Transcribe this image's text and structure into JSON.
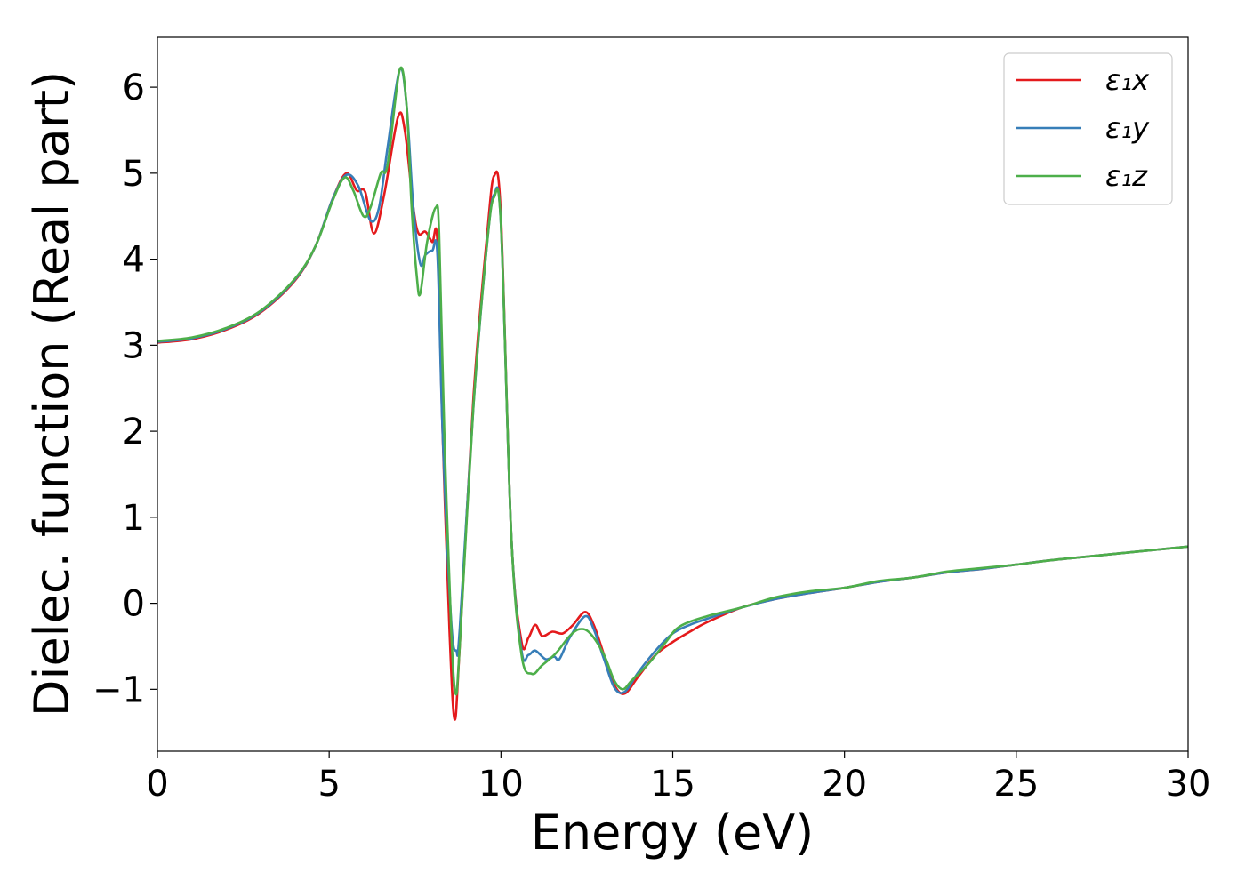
{
  "chart_data": {
    "type": "line",
    "title": "",
    "xlabel": "Energy (eV)",
    "ylabel": "Dielec. function (Real part)",
    "xlim": [
      0,
      30
    ],
    "ylim": [
      -1.72,
      6.58
    ],
    "xticks": [
      0,
      5,
      10,
      15,
      20,
      25,
      30
    ],
    "xtick_labels": [
      "0",
      "5",
      "10",
      "15",
      "20",
      "25",
      "30"
    ],
    "yticks": [
      -1,
      0,
      1,
      2,
      3,
      4,
      5,
      6
    ],
    "ytick_labels": [
      "−1",
      "0",
      "1",
      "2",
      "3",
      "4",
      "5",
      "6"
    ],
    "grid": false,
    "legend": "top-right",
    "series": [
      {
        "name": "ε₁x",
        "color": "#e41a1c",
        "points": [
          [
            0,
            3.03
          ],
          [
            1,
            3.07
          ],
          [
            2,
            3.18
          ],
          [
            3,
            3.38
          ],
          [
            4,
            3.75
          ],
          [
            4.6,
            4.15
          ],
          [
            5.1,
            4.7
          ],
          [
            5.5,
            5.0
          ],
          [
            5.8,
            4.8
          ],
          [
            6.05,
            4.78
          ],
          [
            6.3,
            4.3
          ],
          [
            6.6,
            4.75
          ],
          [
            7.0,
            5.65
          ],
          [
            7.2,
            5.5
          ],
          [
            7.45,
            4.6
          ],
          [
            7.6,
            4.3
          ],
          [
            7.8,
            4.32
          ],
          [
            8.0,
            4.2
          ],
          [
            8.15,
            4.2
          ],
          [
            8.3,
            2.0
          ],
          [
            8.5,
            -0.3
          ],
          [
            8.65,
            -1.35
          ],
          [
            8.8,
            -0.5
          ],
          [
            9.2,
            2.4
          ],
          [
            9.6,
            4.3
          ],
          [
            9.8,
            4.97
          ],
          [
            10.0,
            4.5
          ],
          [
            10.3,
            0.8
          ],
          [
            10.6,
            -0.45
          ],
          [
            10.8,
            -0.4
          ],
          [
            11.0,
            -0.25
          ],
          [
            11.2,
            -0.38
          ],
          [
            11.5,
            -0.33
          ],
          [
            11.8,
            -0.35
          ],
          [
            12.1,
            -0.25
          ],
          [
            12.45,
            -0.1
          ],
          [
            12.7,
            -0.25
          ],
          [
            13.0,
            -0.6
          ],
          [
            13.3,
            -0.95
          ],
          [
            13.6,
            -1.05
          ],
          [
            14.0,
            -0.85
          ],
          [
            14.5,
            -0.6
          ],
          [
            15.0,
            -0.45
          ],
          [
            15.5,
            -0.33
          ],
          [
            16,
            -0.22
          ],
          [
            17,
            -0.05
          ],
          [
            18,
            0.05
          ],
          [
            19,
            0.12
          ],
          [
            20,
            0.18
          ],
          [
            21,
            0.25
          ],
          [
            22,
            0.3
          ],
          [
            23,
            0.36
          ],
          [
            24,
            0.4
          ],
          [
            25,
            0.45
          ],
          [
            26,
            0.5
          ],
          [
            27,
            0.54
          ],
          [
            28,
            0.58
          ],
          [
            29,
            0.62
          ],
          [
            30,
            0.66
          ]
        ]
      },
      {
        "name": "ε₁y",
        "color": "#377eb8",
        "points": [
          [
            0,
            3.04
          ],
          [
            1,
            3.08
          ],
          [
            2,
            3.19
          ],
          [
            3,
            3.39
          ],
          [
            4,
            3.76
          ],
          [
            4.6,
            4.15
          ],
          [
            5.1,
            4.7
          ],
          [
            5.5,
            4.98
          ],
          [
            5.85,
            4.85
          ],
          [
            6.2,
            4.45
          ],
          [
            6.45,
            4.6
          ],
          [
            6.7,
            5.3
          ],
          [
            7.05,
            6.2
          ],
          [
            7.25,
            5.8
          ],
          [
            7.45,
            4.6
          ],
          [
            7.65,
            3.95
          ],
          [
            7.8,
            4.05
          ],
          [
            8.0,
            4.1
          ],
          [
            8.15,
            4.05
          ],
          [
            8.3,
            2.0
          ],
          [
            8.55,
            -0.2
          ],
          [
            8.7,
            -0.55
          ],
          [
            8.8,
            -0.3
          ],
          [
            9.2,
            2.3
          ],
          [
            9.6,
            4.2
          ],
          [
            9.8,
            4.75
          ],
          [
            10.0,
            4.4
          ],
          [
            10.3,
            0.8
          ],
          [
            10.6,
            -0.55
          ],
          [
            10.8,
            -0.6
          ],
          [
            11.0,
            -0.55
          ],
          [
            11.3,
            -0.65
          ],
          [
            11.55,
            -0.62
          ],
          [
            11.7,
            -0.65
          ],
          [
            12.0,
            -0.4
          ],
          [
            12.45,
            -0.15
          ],
          [
            12.7,
            -0.3
          ],
          [
            13.0,
            -0.65
          ],
          [
            13.3,
            -0.98
          ],
          [
            13.6,
            -1.03
          ],
          [
            14.0,
            -0.8
          ],
          [
            14.5,
            -0.55
          ],
          [
            15.0,
            -0.35
          ],
          [
            15.5,
            -0.25
          ],
          [
            16,
            -0.18
          ],
          [
            17,
            -0.05
          ],
          [
            18,
            0.05
          ],
          [
            19,
            0.12
          ],
          [
            20,
            0.18
          ],
          [
            21,
            0.25
          ],
          [
            22,
            0.3
          ],
          [
            23,
            0.36
          ],
          [
            24,
            0.4
          ],
          [
            25,
            0.45
          ],
          [
            26,
            0.5
          ],
          [
            27,
            0.54
          ],
          [
            28,
            0.58
          ],
          [
            29,
            0.62
          ],
          [
            30,
            0.66
          ]
        ]
      },
      {
        "name": "ε₁z",
        "color": "#4daf4a",
        "points": [
          [
            0,
            3.05
          ],
          [
            1,
            3.09
          ],
          [
            2,
            3.2
          ],
          [
            3,
            3.4
          ],
          [
            4,
            3.77
          ],
          [
            4.6,
            4.15
          ],
          [
            5.1,
            4.68
          ],
          [
            5.45,
            4.95
          ],
          [
            5.7,
            4.8
          ],
          [
            6.0,
            4.5
          ],
          [
            6.2,
            4.6
          ],
          [
            6.5,
            5.0
          ],
          [
            6.7,
            5.1
          ],
          [
            7.05,
            6.2
          ],
          [
            7.25,
            5.8
          ],
          [
            7.4,
            4.6
          ],
          [
            7.55,
            3.8
          ],
          [
            7.65,
            3.6
          ],
          [
            7.85,
            4.2
          ],
          [
            8.1,
            4.6
          ],
          [
            8.2,
            4.3
          ],
          [
            8.35,
            2.0
          ],
          [
            8.55,
            -0.3
          ],
          [
            8.68,
            -1.05
          ],
          [
            8.8,
            -0.5
          ],
          [
            9.2,
            2.3
          ],
          [
            9.6,
            4.2
          ],
          [
            9.8,
            4.72
          ],
          [
            10.0,
            4.4
          ],
          [
            10.3,
            0.8
          ],
          [
            10.6,
            -0.6
          ],
          [
            10.9,
            -0.82
          ],
          [
            11.2,
            -0.72
          ],
          [
            11.6,
            -0.58
          ],
          [
            12.0,
            -0.38
          ],
          [
            12.3,
            -0.3
          ],
          [
            12.6,
            -0.35
          ],
          [
            13.0,
            -0.6
          ],
          [
            13.3,
            -0.9
          ],
          [
            13.55,
            -1.0
          ],
          [
            13.8,
            -0.9
          ],
          [
            14.3,
            -0.7
          ],
          [
            14.8,
            -0.45
          ],
          [
            15.2,
            -0.27
          ],
          [
            16,
            -0.15
          ],
          [
            17,
            -0.05
          ],
          [
            18,
            0.07
          ],
          [
            19,
            0.14
          ],
          [
            20,
            0.18
          ],
          [
            21,
            0.26
          ],
          [
            22,
            0.3
          ],
          [
            23,
            0.37
          ],
          [
            24,
            0.41
          ],
          [
            25,
            0.45
          ],
          [
            26,
            0.5
          ],
          [
            27,
            0.54
          ],
          [
            28,
            0.58
          ],
          [
            29,
            0.62
          ],
          [
            30,
            0.66
          ]
        ]
      }
    ]
  }
}
